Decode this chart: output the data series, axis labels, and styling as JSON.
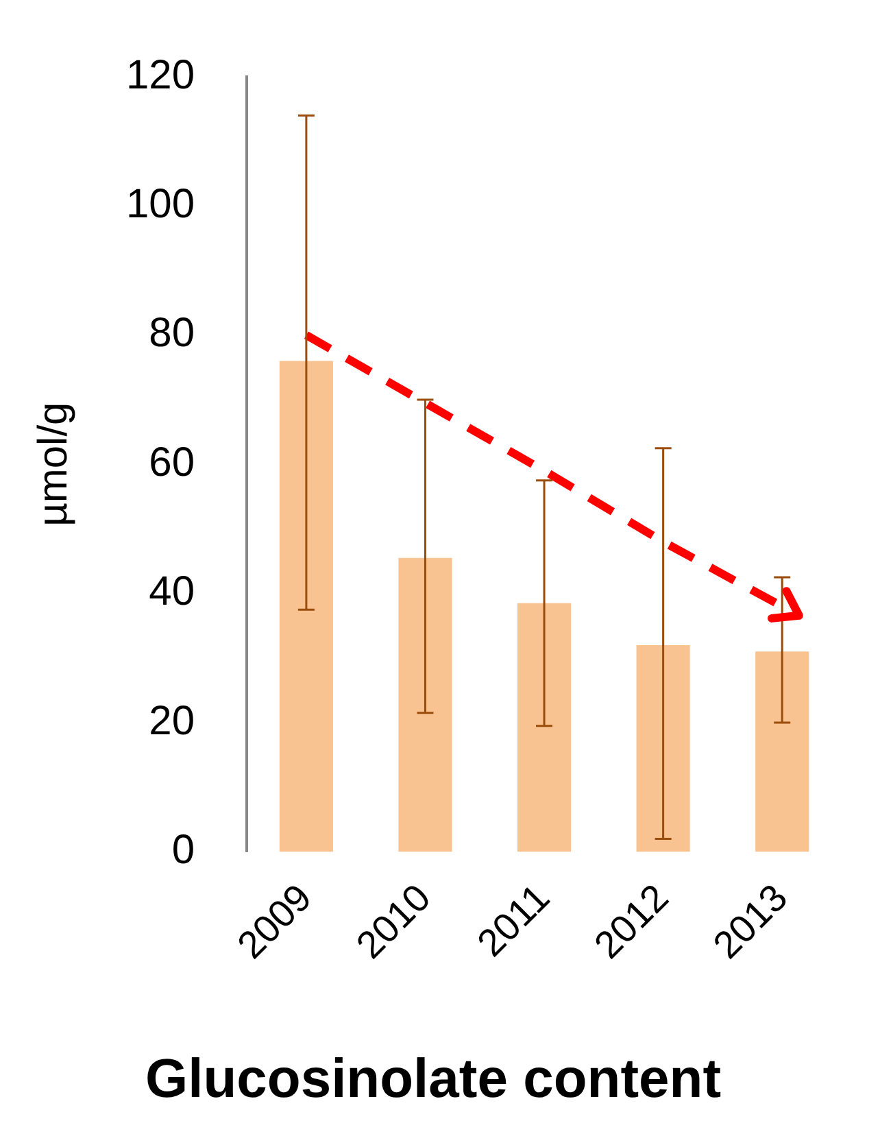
{
  "chart_data": {
    "type": "bar",
    "title": "Glucosinolate content",
    "ylabel": "µmol/g",
    "categories": [
      "2009",
      "2010",
      "2011",
      "2012",
      "2013"
    ],
    "series": [
      {
        "color": "#f9c291",
        "values": [
          76,
          45.5,
          38.5,
          32,
          31
        ],
        "errors": [
          [
            37.5,
            114
          ],
          [
            21.5,
            70
          ],
          [
            19.5,
            57.5
          ],
          [
            2,
            62.5
          ],
          [
            20,
            42.5
          ]
        ]
      },
      {
        "type": "line",
        "color": "#ff0000",
        "values": [
          80,
          69.5,
          59,
          48,
          38
        ],
        "line_style": "dashed",
        "marker": "none"
      }
    ],
    "ylim": [
      0,
      120
    ],
    "yticks": [
      0,
      20,
      40,
      60,
      80,
      100,
      120
    ],
    "grid": false,
    "legend": false
  }
}
